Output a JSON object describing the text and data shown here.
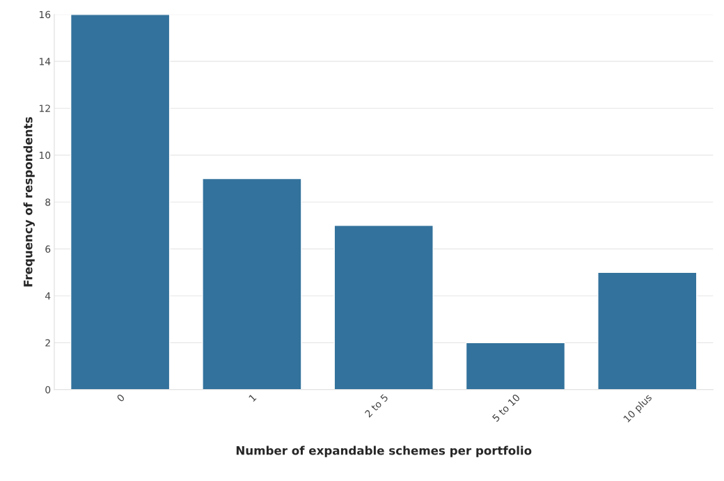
{
  "chart_data": {
    "type": "bar",
    "xlabel": "Number of expandable schemes per portfolio",
    "ylabel": "Frequency of respondents",
    "categories": [
      "0",
      "1",
      "2 to 5",
      "5 to 10",
      "10 plus"
    ],
    "values": [
      16,
      9,
      7,
      2,
      5
    ],
    "color": "#33729c",
    "ylim": [
      0,
      16
    ],
    "yticks": [
      0,
      2,
      4,
      6,
      8,
      10,
      12,
      14,
      16
    ],
    "grid": "y"
  }
}
